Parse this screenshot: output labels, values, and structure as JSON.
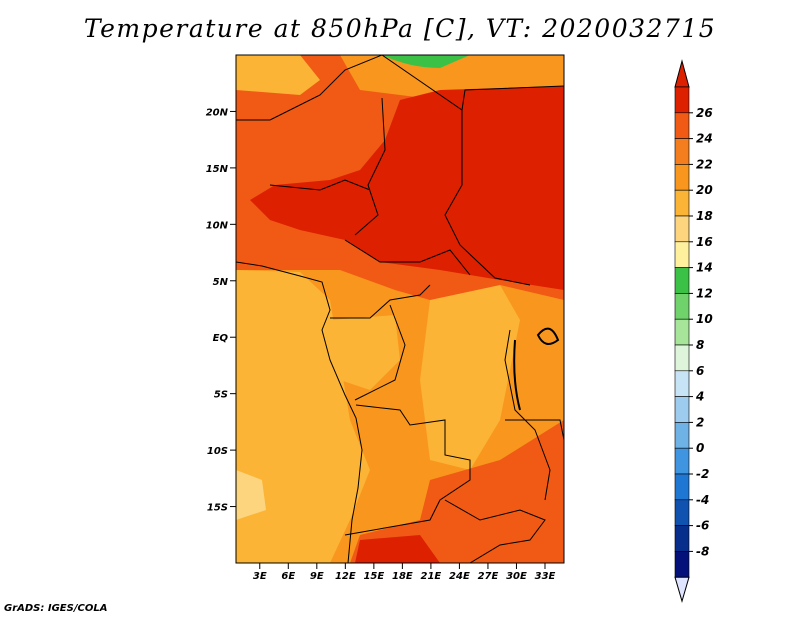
{
  "title": "Temperature at 850hPa [C], VT: 2020032715",
  "credit": "GrADS: IGES/COLA",
  "map": {
    "lat_labels": [
      "20N",
      "15N",
      "10N",
      "5N",
      "EQ",
      "5S",
      "10S",
      "15S"
    ],
    "lat_values": [
      20,
      15,
      10,
      5,
      0,
      -5,
      -10,
      -15
    ],
    "lon_labels": [
      "3E",
      "6E",
      "9E",
      "12E",
      "15E",
      "18E",
      "21E",
      "24E",
      "27E",
      "30E",
      "33E"
    ],
    "lon_values": [
      3,
      6,
      9,
      12,
      15,
      18,
      21,
      24,
      27,
      30,
      33
    ],
    "lon_range": [
      0.5,
      35
    ],
    "lat_range": [
      -20,
      25
    ],
    "color_fill": {
      "very_hot": "#dd2000",
      "hot": "#f05a14",
      "warm": "#f9961e",
      "mild": "#fbb436",
      "cool": "#fdd57e",
      "green": "#3bc246"
    }
  },
  "colorbar": {
    "labels": [
      "26",
      "24",
      "22",
      "20",
      "18",
      "16",
      "14",
      "12",
      "10",
      "8",
      "6",
      "4",
      "2",
      "0",
      "-2",
      "-4",
      "-6",
      "-8"
    ],
    "colors": [
      "#dd2000",
      "#f05a14",
      "#f47d1e",
      "#f9961e",
      "#fbb436",
      "#fdd57e",
      "#fff09e",
      "#3bc246",
      "#6fd26b",
      "#a6e59a",
      "#def5db",
      "#c6e4f6",
      "#9dccee",
      "#6fb2e6",
      "#3f95df",
      "#1f77d4",
      "#0f52b0",
      "#062e8a",
      "#04117a"
    ],
    "over_color": "#dd2000",
    "under_color": "#dfe4ff"
  }
}
